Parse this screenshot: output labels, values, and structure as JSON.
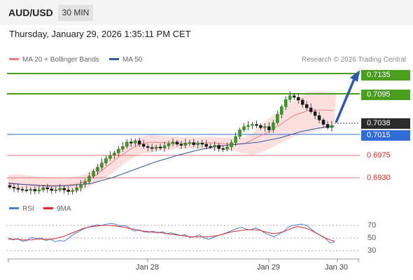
{
  "header": {
    "pair": "AUD/USD",
    "timeframe": "30 MIN"
  },
  "timestamp": "Thursday, January 29, 2026 1:35:11 PM CET",
  "legend": {
    "ma20": {
      "label": "MA 20 + Bollinger Bands",
      "color": "#f08080"
    },
    "ma50": {
      "label": "MA 50",
      "color": "#2c5aa0"
    }
  },
  "credit": "Research © 2026 Trading Central",
  "levels": {
    "r2": "0.7135",
    "r1": "0.7095",
    "last": "0.7038",
    "pivot": "0.7015",
    "s1": "0.6975",
    "s2": "0.6930"
  },
  "rsi_legend": {
    "rsi": {
      "label": "RSI",
      "color": "#4a7fd6"
    },
    "ma9": {
      "label": "9MA",
      "color": "#d42a2a"
    }
  },
  "rsi_ticks": [
    "70",
    "50",
    "30"
  ],
  "x_axis": [
    "Jan 28",
    "Jan 29",
    "Jan 30"
  ],
  "chart_data": {
    "type": "candlestick",
    "price_range": [
      0.691,
      0.7145
    ],
    "close_prices": [
      0.6926,
      0.6924,
      0.6922,
      0.6921,
      0.692,
      0.6922,
      0.6919,
      0.6921,
      0.6925,
      0.6923,
      0.692,
      0.6921,
      0.6924,
      0.6921,
      0.6918,
      0.692,
      0.6925,
      0.6931,
      0.6936,
      0.6946,
      0.6955,
      0.6962,
      0.697,
      0.6978,
      0.6984,
      0.6988,
      0.6995,
      0.7,
      0.7008,
      0.7006,
      0.701,
      0.7004,
      0.7,
      0.6998,
      0.6996,
      0.6999,
      0.6997,
      0.7001,
      0.7005,
      0.7008,
      0.7004,
      0.7002,
      0.7006,
      0.7007,
      0.7003,
      0.7006,
      0.7004,
      0.7,
      0.6999,
      0.7002,
      0.6996,
      0.6995,
      0.6999,
      0.7007,
      0.7018,
      0.703,
      0.7036,
      0.7038,
      0.704,
      0.7038,
      0.7034,
      0.7036,
      0.703,
      0.7043,
      0.7058,
      0.7072,
      0.7085,
      0.7092,
      0.7089,
      0.7084,
      0.7076,
      0.707,
      0.7063,
      0.7056,
      0.7048,
      0.704,
      0.7034,
      0.7038
    ],
    "rsi": [
      50,
      47,
      49,
      45,
      46,
      51,
      49,
      50,
      46,
      48,
      44,
      46,
      45,
      50,
      56,
      60,
      64,
      67,
      69,
      71,
      70,
      72,
      73,
      72,
      69,
      70,
      66,
      61,
      63,
      60,
      59,
      61,
      58,
      60,
      57,
      58,
      56,
      54,
      55,
      51,
      52,
      55,
      50,
      48,
      51,
      54,
      56,
      59,
      62,
      65,
      67,
      64,
      63,
      66,
      63,
      58,
      55,
      52,
      56,
      60,
      67,
      70,
      71,
      72,
      70,
      64,
      58,
      54,
      50,
      42,
      44
    ],
    "rsi_ma9": [
      48,
      48,
      48,
      47,
      47,
      47,
      48,
      48,
      48,
      48,
      49,
      51,
      53,
      56,
      59,
      62,
      65,
      67,
      68,
      69,
      70,
      70,
      70,
      69,
      68,
      67,
      65,
      64,
      62,
      61,
      60,
      59,
      59,
      58,
      57,
      56,
      55,
      54,
      53,
      52,
      52,
      52,
      52,
      52,
      53,
      54,
      56,
      58,
      60,
      61,
      62,
      63,
      63,
      63,
      62,
      60,
      58,
      57,
      58,
      60,
      63,
      66,
      68,
      67,
      65,
      62,
      58,
      54,
      50,
      47,
      45
    ],
    "forecast_target": 0.7135
  }
}
